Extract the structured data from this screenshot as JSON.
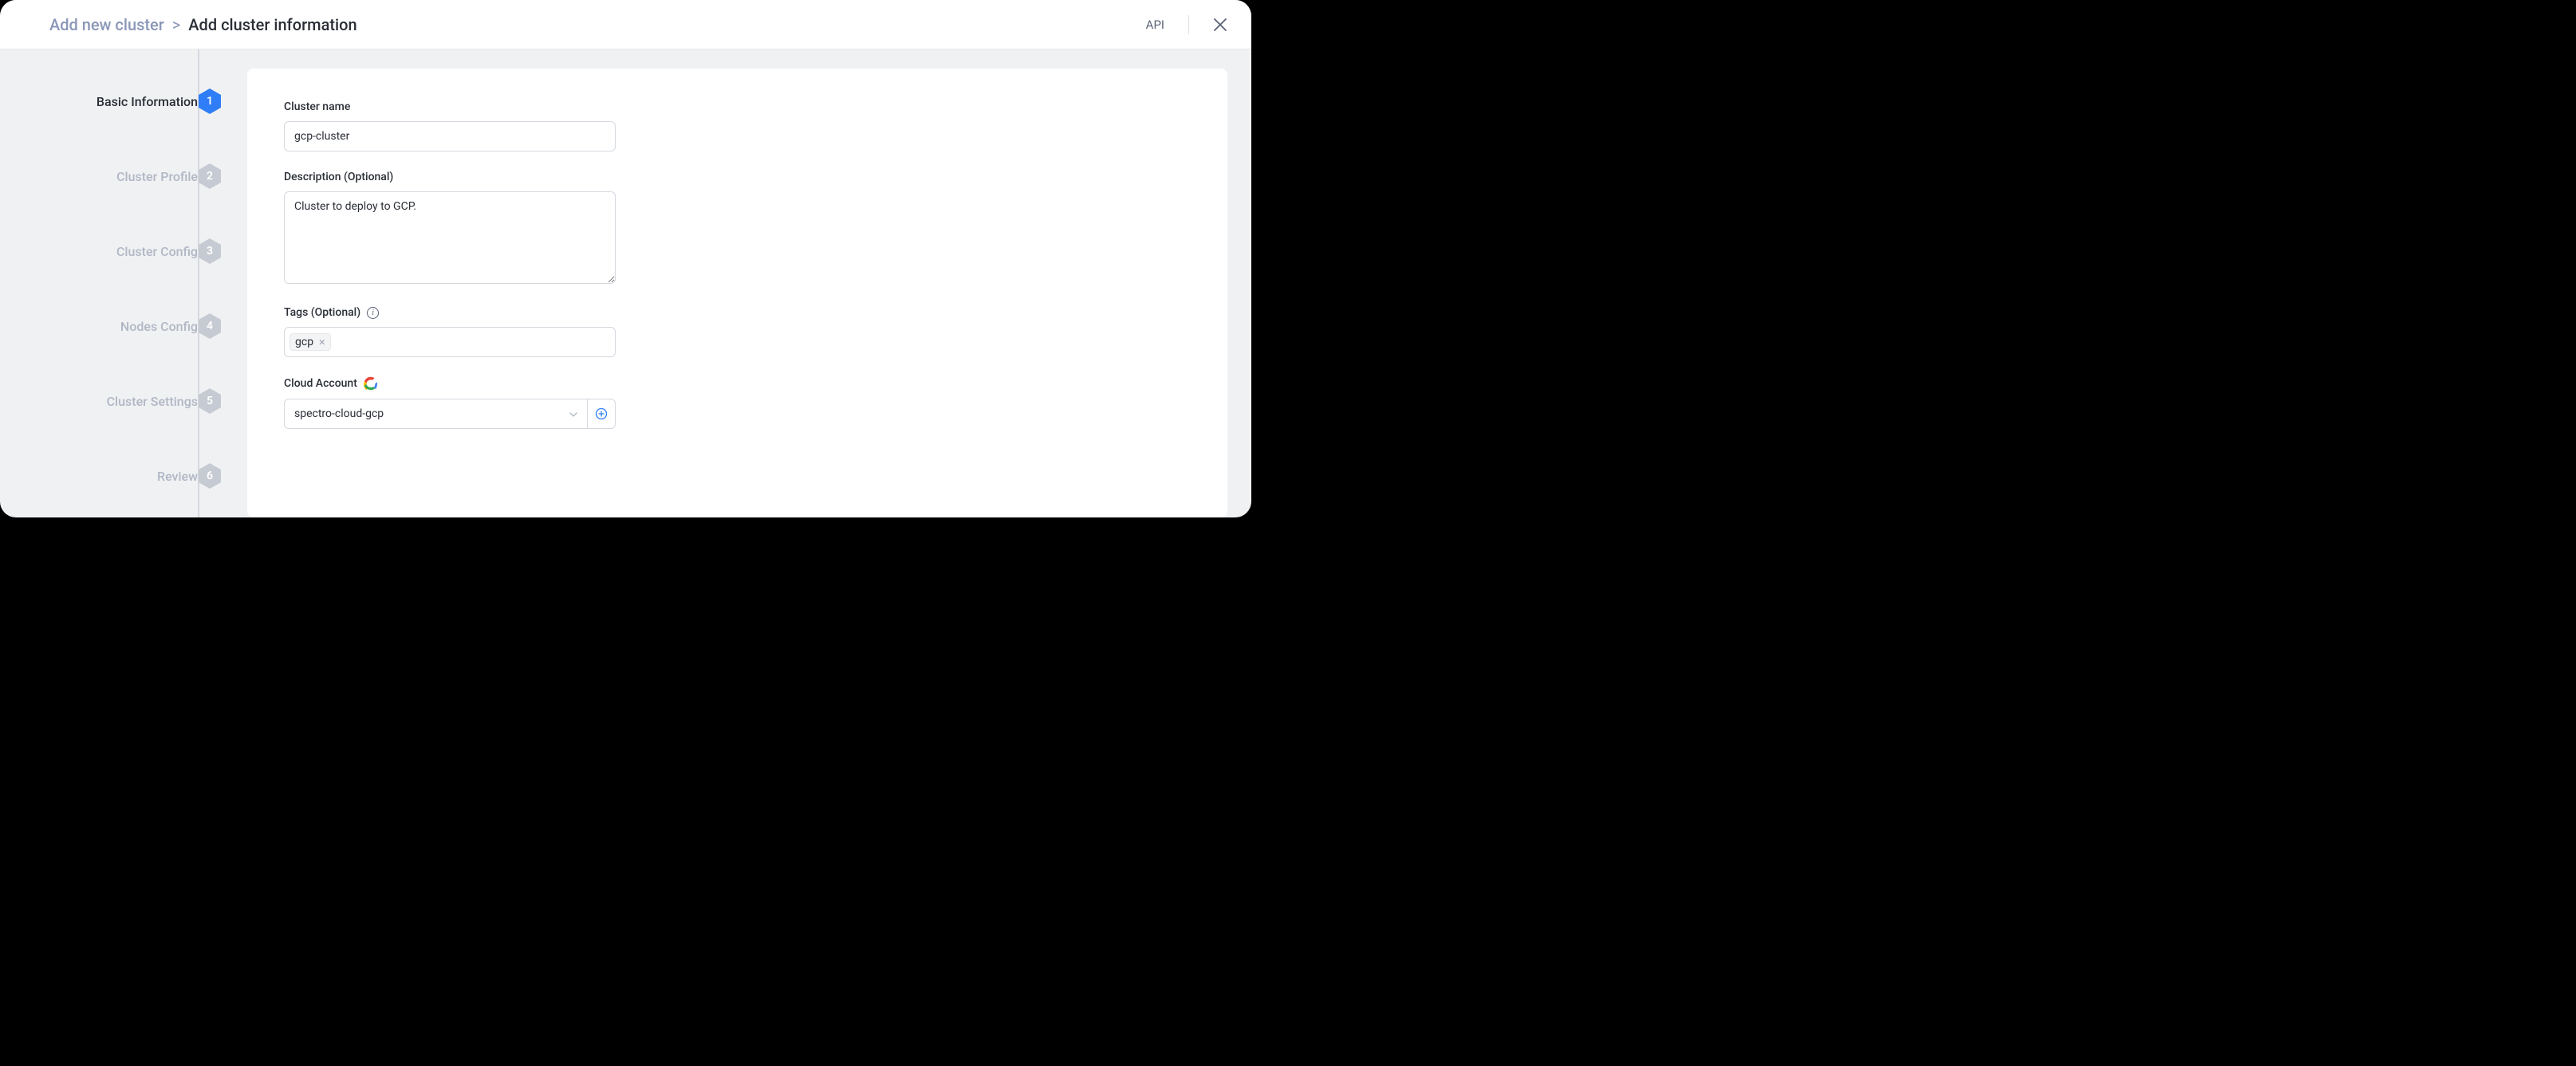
{
  "header": {
    "breadcrumb_root": "Add new cluster",
    "breadcrumb_sep": ">",
    "breadcrumb_current": "Add cluster information",
    "api_label": "API"
  },
  "steps": [
    {
      "num": "1",
      "label": "Basic Information",
      "active": true
    },
    {
      "num": "2",
      "label": "Cluster Profile",
      "active": false
    },
    {
      "num": "3",
      "label": "Cluster Config",
      "active": false
    },
    {
      "num": "4",
      "label": "Nodes Config",
      "active": false
    },
    {
      "num": "5",
      "label": "Cluster Settings",
      "active": false
    },
    {
      "num": "6",
      "label": "Review",
      "active": false
    }
  ],
  "form": {
    "cluster_name_label": "Cluster name",
    "cluster_name_value": "gcp-cluster",
    "description_label": "Description (Optional)",
    "description_value": "Cluster to deploy to GCP.",
    "tags_label": "Tags (Optional)",
    "tags": [
      {
        "text": "gcp"
      }
    ],
    "cloud_account_label": "Cloud Account",
    "cloud_account_value": "spectro-cloud-gcp"
  },
  "colors": {
    "active_hex": "#2f7ef7",
    "inactive_hex": "#c6cad2",
    "bg": "#f0f1f3",
    "muted": "#8b97b8",
    "text": "#2a2e36"
  }
}
